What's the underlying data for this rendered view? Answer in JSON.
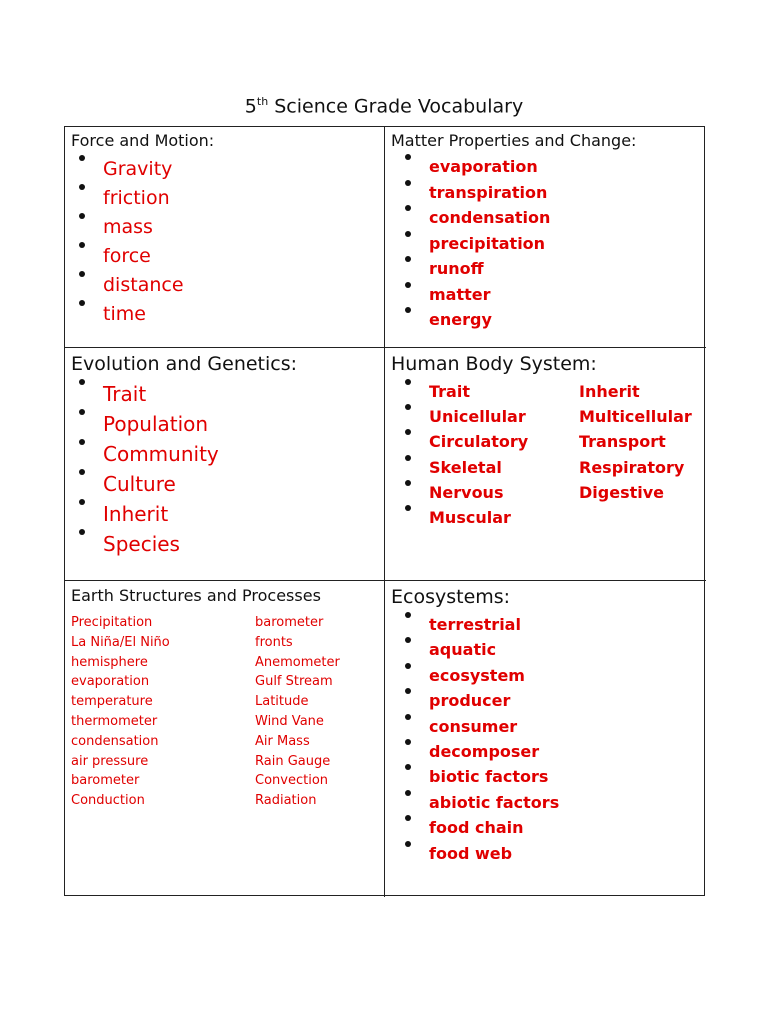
{
  "title": {
    "prefix": "5",
    "sup": "th",
    "rest": " Science Grade Vocabulary"
  },
  "sections": {
    "force": {
      "header": "Force and Motion:",
      "items": [
        "Gravity",
        "friction",
        "mass",
        "force",
        "distance",
        "time"
      ]
    },
    "matter": {
      "header": "Matter Properties and Change:",
      "items": [
        "evaporation",
        "transpiration",
        "condensation",
        "precipitation",
        "runoff",
        "matter",
        "energy"
      ]
    },
    "evolution": {
      "header": "Evolution and Genetics:",
      "items": [
        "Trait",
        "Population",
        "Community",
        "Culture",
        "Inherit",
        "Species"
      ]
    },
    "body": {
      "header": "Human Body System:",
      "rows": [
        [
          "Trait",
          "Inherit"
        ],
        [
          "Unicellular",
          "Multicellular"
        ],
        [
          "Circulatory",
          "Transport"
        ],
        [
          "Skeletal",
          "Respiratory"
        ],
        [
          "Nervous",
          "Digestive"
        ],
        [
          "Muscular",
          ""
        ]
      ]
    },
    "earth": {
      "header": "Earth Structures and Processes",
      "rows": [
        [
          "Precipitation",
          "barometer"
        ],
        [
          "La Niña/El Niño",
          "fronts"
        ],
        [
          "hemisphere",
          "Anemometer"
        ],
        [
          "evaporation",
          "Gulf Stream"
        ],
        [
          "temperature",
          "Latitude"
        ],
        [
          "thermometer",
          "Wind Vane"
        ],
        [
          "condensation",
          "Air Mass"
        ],
        [
          "air pressure",
          "Rain Gauge"
        ],
        [
          "barometer",
          "Convection"
        ],
        [
          "Conduction",
          "Radiation"
        ]
      ]
    },
    "eco": {
      "header": "Ecosystems:",
      "items": [
        "terrestrial",
        "aquatic",
        "ecosystem",
        "producer",
        "consumer",
        "decomposer",
        "biotic factors",
        "abiotic factors",
        "food chain",
        "food web"
      ]
    }
  },
  "colors": {
    "term": "#e00000",
    "text": "#111111"
  }
}
